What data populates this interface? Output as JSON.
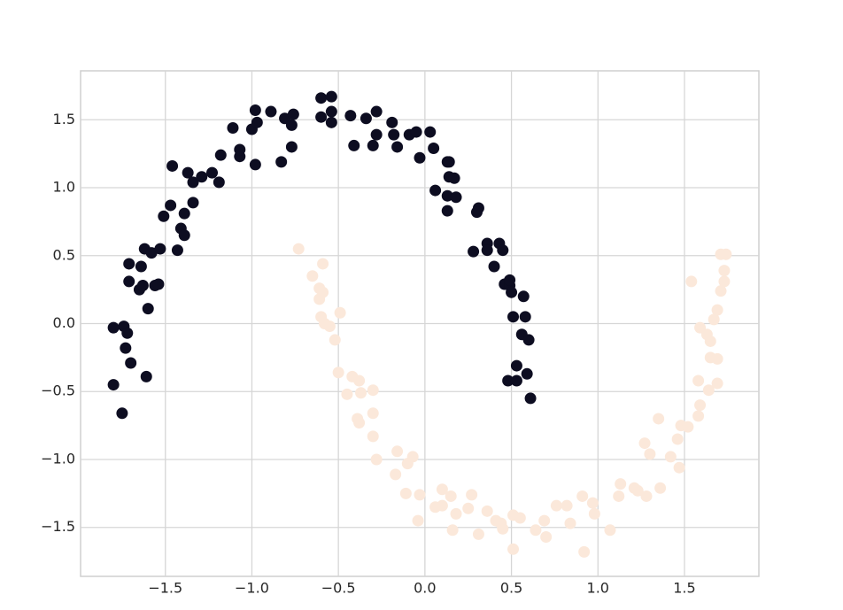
{
  "chart_data": {
    "type": "scatter",
    "xlim": [
      -1.99,
      1.93
    ],
    "ylim": [
      -1.86,
      1.86
    ],
    "xticks": [
      {
        "value": -1.5,
        "label": "−1.5"
      },
      {
        "value": -1.0,
        "label": "−1.0"
      },
      {
        "value": -0.5,
        "label": "−0.5"
      },
      {
        "value": 0,
        "label": "0.0"
      },
      0.5,
      {
        "value": 1.0,
        "label": "1.0"
      },
      1.5
    ],
    "yticks": [
      {
        "value": -1.5,
        "label": "−1.5"
      },
      {
        "value": -1.0,
        "label": "−1.0"
      },
      {
        "value": -0.5,
        "label": "−0.5"
      },
      {
        "value": 0,
        "label": "0.0"
      },
      0.5,
      {
        "value": 1.0,
        "label": "1.0"
      },
      1.5
    ],
    "grid": true,
    "series": [
      {
        "color": "#0d0d21",
        "x": [
          -1.8,
          -1.74,
          -1.72,
          -1.73,
          -1.8,
          -1.7,
          -1.75,
          -1.61,
          -1.71,
          -1.71,
          -1.65,
          -1.63,
          -1.64,
          -1.6,
          -1.56,
          -1.54,
          -1.62,
          -1.58,
          -1.53,
          -1.43,
          -1.51,
          -1.47,
          -1.41,
          -1.39,
          -1.39,
          -1.34,
          -1.46,
          -1.37,
          -1.34,
          -1.29,
          -1.23,
          -1.19,
          -1.18,
          -1.11,
          -1.07,
          -1.07,
          -0.98,
          -1.0,
          -0.98,
          -0.97,
          -0.89,
          -0.83,
          -0.81,
          -0.77,
          -0.76,
          -0.77,
          -0.6,
          -0.54,
          -0.6,
          -0.54,
          -0.54,
          -0.43,
          -0.34,
          -0.28,
          -0.41,
          -0.3,
          -0.28,
          -0.19,
          -0.18,
          -0.16,
          -0.09,
          -0.05,
          -0.03,
          0.03,
          0.05,
          0.13,
          0.14,
          0.06,
          0.13,
          0.13,
          0.14,
          0.17,
          0.18,
          0.31,
          0.3,
          0.28,
          0.36,
          0.36,
          0.43,
          0.45,
          0.4,
          0.46,
          0.49,
          0.5,
          0.49,
          0.57,
          0.51,
          0.58,
          0.56,
          0.6,
          0.53,
          0.48,
          0.53,
          0.59,
          0.61
        ],
        "values": [
          -0.03,
          -0.02,
          -0.07,
          -0.18,
          -0.45,
          -0.29,
          -0.66,
          -0.39,
          0.44,
          0.31,
          0.25,
          0.28,
          0.42,
          0.11,
          0.28,
          0.29,
          0.55,
          0.52,
          0.55,
          0.54,
          0.79,
          0.87,
          0.7,
          0.65,
          0.81,
          0.89,
          1.16,
          1.11,
          1.04,
          1.08,
          1.11,
          1.04,
          1.24,
          1.44,
          1.23,
          1.28,
          1.17,
          1.43,
          1.57,
          1.48,
          1.56,
          1.19,
          1.51,
          1.46,
          1.54,
          1.3,
          1.66,
          1.67,
          1.52,
          1.56,
          1.48,
          1.53,
          1.51,
          1.56,
          1.31,
          1.31,
          1.39,
          1.48,
          1.39,
          1.3,
          1.39,
          1.41,
          1.22,
          1.41,
          1.29,
          1.19,
          1.19,
          0.98,
          0.94,
          0.83,
          1.08,
          1.07,
          0.93,
          0.85,
          0.82,
          0.53,
          0.59,
          0.54,
          0.59,
          0.54,
          0.42,
          0.29,
          0.28,
          0.23,
          0.32,
          0.2,
          0.05,
          0.05,
          -0.08,
          -0.12,
          -0.31,
          -0.42,
          -0.42,
          -0.37,
          -0.55
        ]
      },
      {
        "color": "#fbe8da",
        "x": [
          -0.73,
          -0.59,
          -0.65,
          -0.61,
          -0.59,
          -0.61,
          -0.49,
          -0.6,
          -0.58,
          -0.55,
          -0.52,
          -0.5,
          -0.42,
          -0.45,
          -0.38,
          -0.37,
          -0.3,
          -0.39,
          -0.38,
          -0.3,
          -0.3,
          -0.28,
          -0.16,
          -0.1,
          -0.07,
          -0.17,
          -0.11,
          -0.03,
          -0.04,
          0.06,
          0.1,
          0.1,
          0.15,
          0.18,
          0.16,
          0.27,
          0.25,
          0.31,
          0.36,
          0.41,
          0.44,
          0.45,
          0.51,
          0.51,
          0.55,
          0.64,
          0.69,
          0.7,
          0.76,
          0.82,
          0.84,
          0.91,
          0.92,
          0.97,
          0.98,
          1.07,
          1.12,
          1.13,
          1.21,
          1.23,
          1.28,
          1.36,
          1.27,
          1.3,
          1.35,
          1.42,
          1.47,
          1.46,
          1.48,
          1.52,
          1.58,
          1.59,
          1.64,
          1.58,
          1.69,
          1.65,
          1.69,
          1.59,
          1.63,
          1.65,
          1.67,
          1.69,
          1.54,
          1.71,
          1.73,
          1.73,
          1.71,
          1.74
        ],
        "values": [
          0.55,
          0.44,
          0.35,
          0.26,
          0.23,
          0.18,
          0.08,
          0.05,
          0.0,
          -0.02,
          -0.12,
          -0.36,
          -0.39,
          -0.52,
          -0.42,
          -0.51,
          -0.49,
          -0.7,
          -0.73,
          -0.66,
          -0.83,
          -1.0,
          -0.94,
          -1.03,
          -0.98,
          -1.11,
          -1.25,
          -1.26,
          -1.45,
          -1.35,
          -1.22,
          -1.34,
          -1.27,
          -1.4,
          -1.52,
          -1.26,
          -1.36,
          -1.55,
          -1.38,
          -1.45,
          -1.47,
          -1.51,
          -1.41,
          -1.66,
          -1.43,
          -1.52,
          -1.45,
          -1.57,
          -1.34,
          -1.34,
          -1.47,
          -1.27,
          -1.68,
          -1.32,
          -1.4,
          -1.52,
          -1.27,
          -1.18,
          -1.21,
          -1.23,
          -1.27,
          -1.21,
          -0.88,
          -0.96,
          -0.7,
          -0.98,
          -1.06,
          -0.85,
          -0.75,
          -0.76,
          -0.68,
          -0.6,
          -0.49,
          -0.42,
          -0.44,
          -0.25,
          -0.26,
          -0.03,
          -0.08,
          -0.13,
          0.03,
          0.1,
          0.31,
          0.24,
          0.31,
          0.39,
          0.51,
          0.51
        ]
      }
    ]
  }
}
